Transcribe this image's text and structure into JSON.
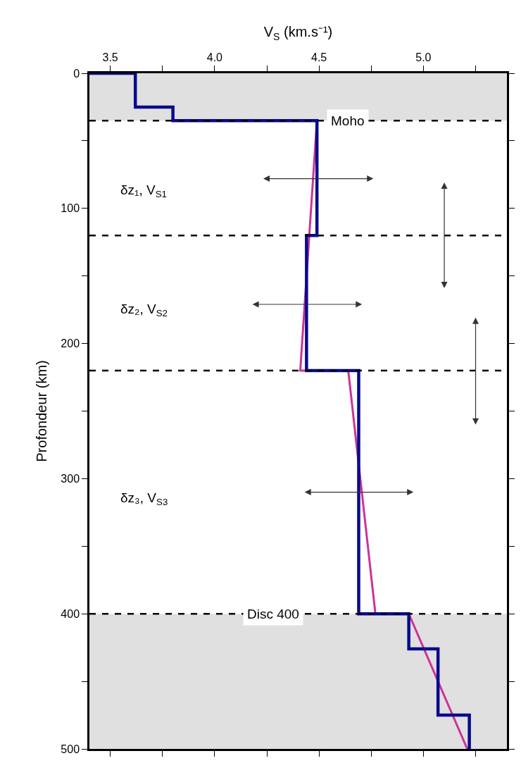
{
  "chart_data": {
    "type": "line",
    "xlabel": "V$_{S}$ (km.s⁻¹)",
    "ylabel": "Profondeur (km)",
    "series": [
      {
        "type": "line",
        "color": "#cc3399",
        "x": [
          4.49,
          4.41,
          4.64,
          4.77,
          4.93,
          5.21
        ],
        "values": [
          35,
          220,
          220,
          400,
          400,
          500
        ]
      },
      {
        "type": "step",
        "color": "#0a0a8c",
        "x": [
          3.4,
          3.62,
          3.8,
          4.49,
          4.44,
          4.69,
          4.93,
          5.07,
          5.22
        ],
        "values": [
          0,
          25,
          35,
          120,
          220,
          400,
          426,
          475,
          500
        ]
      }
    ],
    "xlim": [
      3.4,
      5.4
    ],
    "xticks": [
      3.5,
      {
        "value": 3.75,
        "label": null
      },
      {
        "value": 4.0,
        "label": "4.0"
      },
      {
        "value": 4.25,
        "label": null
      },
      4.5,
      {
        "value": 4.75,
        "label": null
      },
      {
        "value": 5.0,
        "label": "5.0"
      },
      {
        "value": 5.25,
        "label": null
      }
    ],
    "ylim": [
      500,
      0
    ],
    "yticks": [
      0,
      {
        "value": 50,
        "label": null
      },
      100,
      {
        "value": 150,
        "label": null
      },
      200,
      {
        "value": 250,
        "label": null
      },
      300,
      {
        "value": 350,
        "label": null
      },
      400,
      {
        "value": 450,
        "label": null
      },
      500
    ],
    "bands": [
      {
        "axis": "y",
        "from": 0,
        "to": 35,
        "label": null,
        "color": "#e0e0e0"
      },
      {
        "axis": "y",
        "from": 400,
        "to": 500,
        "label": null,
        "color": "#e0e0e0"
      }
    ],
    "ref_lines": [
      {
        "axis": "y",
        "value": 35,
        "label": "Moho",
        "line_style": "dashed"
      },
      {
        "axis": "y",
        "value": 120,
        "label": null,
        "line_style": "dashed"
      },
      {
        "axis": "y",
        "value": 220,
        "label": null,
        "line_style": "dashed"
      },
      {
        "axis": "y",
        "value": 400,
        "label": "Disc 400",
        "line_style": "dashed"
      }
    ],
    "annotations": [
      "δz₁, V$_{S1}$",
      "δz₂, V$_{S2}$",
      "δz₃, V$_{S3}$"
    ],
    "grid": false,
    "marker": "none"
  }
}
